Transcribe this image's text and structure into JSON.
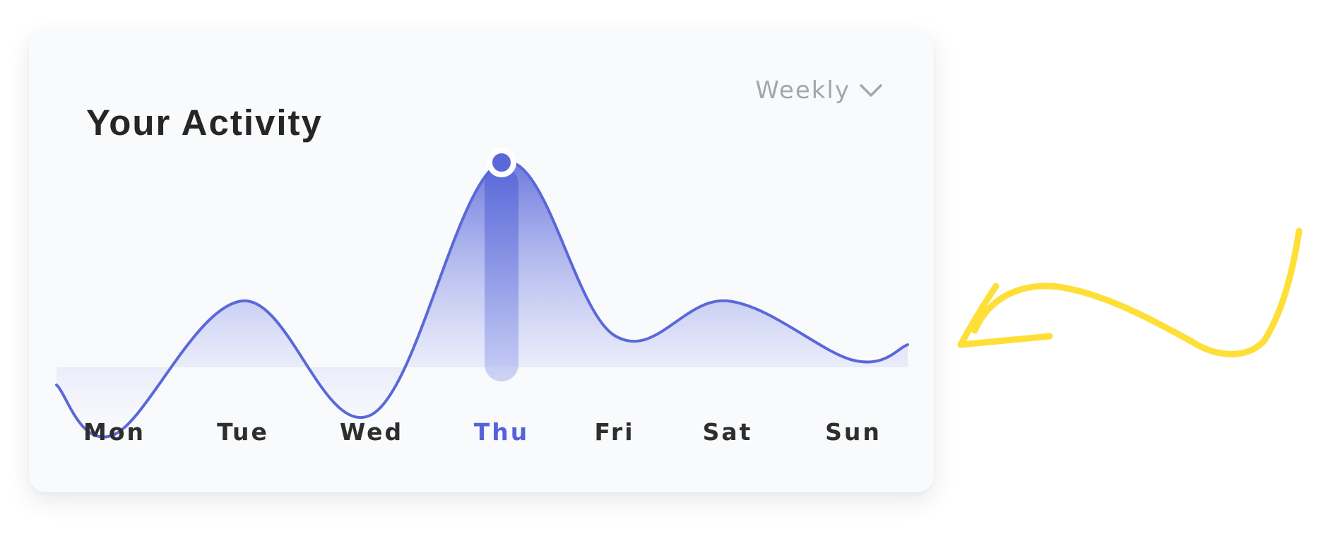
{
  "card": {
    "title": "Your Activity",
    "period_label": "Weekly"
  },
  "chart_data": {
    "type": "area",
    "title": "",
    "xlabel": "",
    "ylabel": "",
    "categories": [
      "Mon",
      "Tue",
      "Wed",
      "Thu",
      "Fri",
      "Sat",
      "Sun"
    ],
    "values": [
      35,
      62,
      39,
      90,
      55,
      62,
      50
    ],
    "series": [
      {
        "values": [
          35,
          62,
          39,
          90,
          55,
          62,
          50
        ]
      }
    ],
    "highlighted_category": "Thu",
    "ylim": [
      0,
      100
    ],
    "grid": false,
    "legend": "none"
  },
  "colors": {
    "line": "#5a68d8",
    "area_top": "#5a68d8",
    "highlight_label": "#5663d8",
    "label": "#2e2e2e",
    "period_label": "#a4a6ab",
    "arrow": "#fddf38"
  },
  "icons": {
    "dropdown": "chevron-down-icon",
    "annotation": "hand-drawn-arrow-icon"
  }
}
